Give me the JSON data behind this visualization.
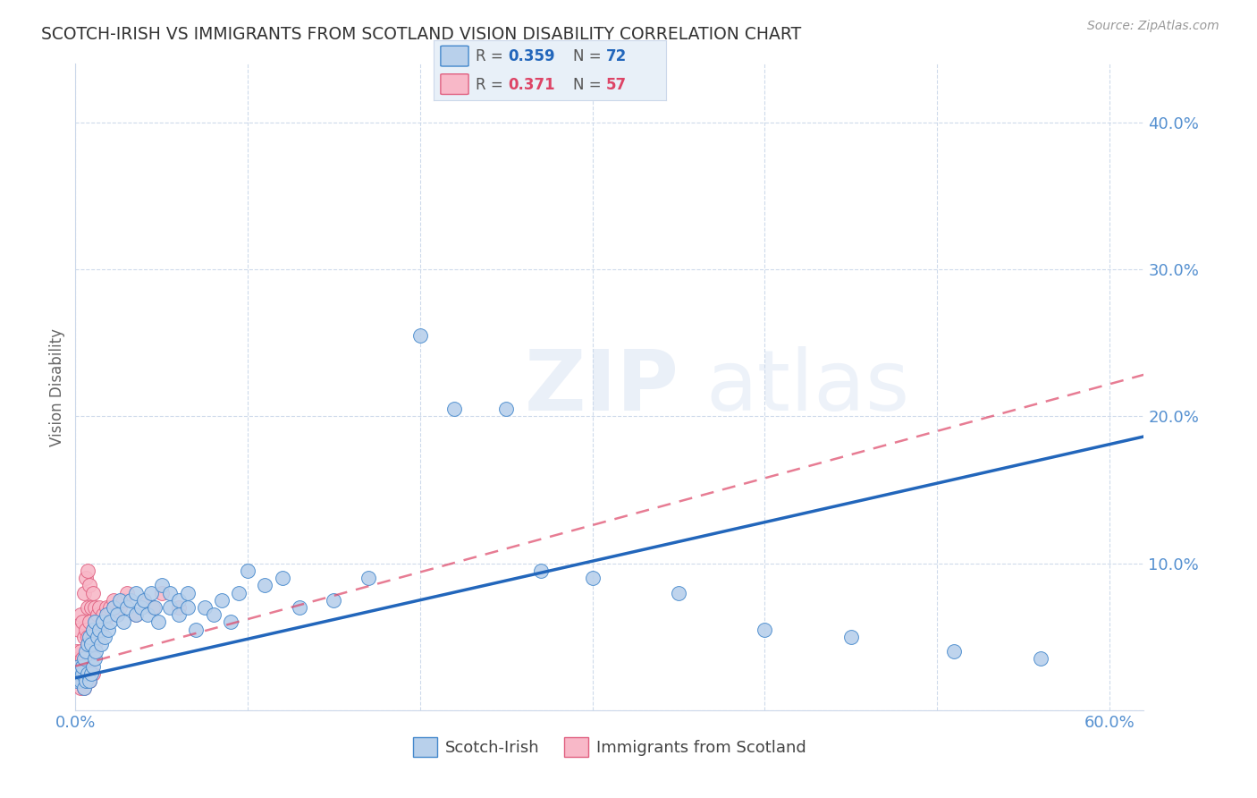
{
  "title": "SCOTCH-IRISH VS IMMIGRANTS FROM SCOTLAND VISION DISABILITY CORRELATION CHART",
  "source": "Source: ZipAtlas.com",
  "ylabel": "Vision Disability",
  "watermark": "ZIPAtlas",
  "xlim": [
    0.0,
    0.62
  ],
  "ylim": [
    0.0,
    0.44
  ],
  "xtick_positions": [
    0.0,
    0.1,
    0.2,
    0.3,
    0.4,
    0.5,
    0.6
  ],
  "ytick_positions": [
    0.0,
    0.1,
    0.2,
    0.3,
    0.4
  ],
  "series1_name": "Scotch-Irish",
  "series1_color": "#b8d0eb",
  "series1_edge_color": "#4488cc",
  "series1_line_color": "#2266bb",
  "series1_R": 0.359,
  "series1_N": 72,
  "series1_x": [
    0.001,
    0.002,
    0.002,
    0.003,
    0.004,
    0.004,
    0.005,
    0.005,
    0.006,
    0.006,
    0.007,
    0.007,
    0.008,
    0.008,
    0.009,
    0.009,
    0.01,
    0.01,
    0.011,
    0.011,
    0.012,
    0.013,
    0.014,
    0.015,
    0.016,
    0.017,
    0.018,
    0.019,
    0.02,
    0.022,
    0.024,
    0.026,
    0.028,
    0.03,
    0.032,
    0.035,
    0.035,
    0.038,
    0.04,
    0.042,
    0.044,
    0.046,
    0.048,
    0.05,
    0.055,
    0.055,
    0.06,
    0.06,
    0.065,
    0.065,
    0.07,
    0.075,
    0.08,
    0.085,
    0.09,
    0.095,
    0.1,
    0.11,
    0.12,
    0.13,
    0.15,
    0.17,
    0.2,
    0.22,
    0.25,
    0.27,
    0.3,
    0.35,
    0.4,
    0.45,
    0.51,
    0.56
  ],
  "series1_y": [
    0.02,
    0.025,
    0.03,
    0.02,
    0.025,
    0.03,
    0.015,
    0.035,
    0.02,
    0.04,
    0.025,
    0.045,
    0.02,
    0.05,
    0.025,
    0.045,
    0.03,
    0.055,
    0.035,
    0.06,
    0.04,
    0.05,
    0.055,
    0.045,
    0.06,
    0.05,
    0.065,
    0.055,
    0.06,
    0.07,
    0.065,
    0.075,
    0.06,
    0.07,
    0.075,
    0.065,
    0.08,
    0.07,
    0.075,
    0.065,
    0.08,
    0.07,
    0.06,
    0.085,
    0.07,
    0.08,
    0.065,
    0.075,
    0.07,
    0.08,
    0.055,
    0.07,
    0.065,
    0.075,
    0.06,
    0.08,
    0.095,
    0.085,
    0.09,
    0.07,
    0.075,
    0.09,
    0.255,
    0.205,
    0.205,
    0.095,
    0.09,
    0.08,
    0.055,
    0.05,
    0.04,
    0.035
  ],
  "series2_name": "Immigrants from Scotland",
  "series2_color": "#f8b8c8",
  "series2_edge_color": "#e06080",
  "series2_line_color": "#dd4466",
  "series2_R": 0.371,
  "series2_N": 57,
  "series2_x": [
    0.001,
    0.001,
    0.001,
    0.002,
    0.002,
    0.002,
    0.003,
    0.003,
    0.003,
    0.003,
    0.004,
    0.004,
    0.004,
    0.005,
    0.005,
    0.005,
    0.005,
    0.006,
    0.006,
    0.006,
    0.006,
    0.007,
    0.007,
    0.007,
    0.007,
    0.007,
    0.008,
    0.008,
    0.008,
    0.008,
    0.009,
    0.009,
    0.009,
    0.01,
    0.01,
    0.01,
    0.011,
    0.011,
    0.012,
    0.013,
    0.014,
    0.015,
    0.016,
    0.017,
    0.018,
    0.019,
    0.02,
    0.022,
    0.024,
    0.026,
    0.028,
    0.03,
    0.035,
    0.04,
    0.045,
    0.05,
    0.06
  ],
  "series2_y": [
    0.02,
    0.03,
    0.04,
    0.02,
    0.035,
    0.055,
    0.015,
    0.025,
    0.04,
    0.065,
    0.02,
    0.035,
    0.06,
    0.015,
    0.03,
    0.05,
    0.08,
    0.02,
    0.035,
    0.055,
    0.09,
    0.02,
    0.03,
    0.05,
    0.07,
    0.095,
    0.02,
    0.035,
    0.06,
    0.085,
    0.025,
    0.045,
    0.07,
    0.025,
    0.05,
    0.08,
    0.045,
    0.07,
    0.06,
    0.065,
    0.07,
    0.055,
    0.065,
    0.06,
    0.07,
    0.065,
    0.07,
    0.075,
    0.065,
    0.07,
    0.075,
    0.08,
    0.065,
    0.075,
    0.07,
    0.08,
    0.07
  ],
  "background_color": "#ffffff",
  "grid_color": "#ccd8ea",
  "title_color": "#333333",
  "axis_label_color": "#5590d0",
  "legend_bg": "#e8f0f8",
  "trend1_intercept": 0.022,
  "trend1_slope": 0.265,
  "trend2_intercept": 0.03,
  "trend2_slope": 0.32
}
